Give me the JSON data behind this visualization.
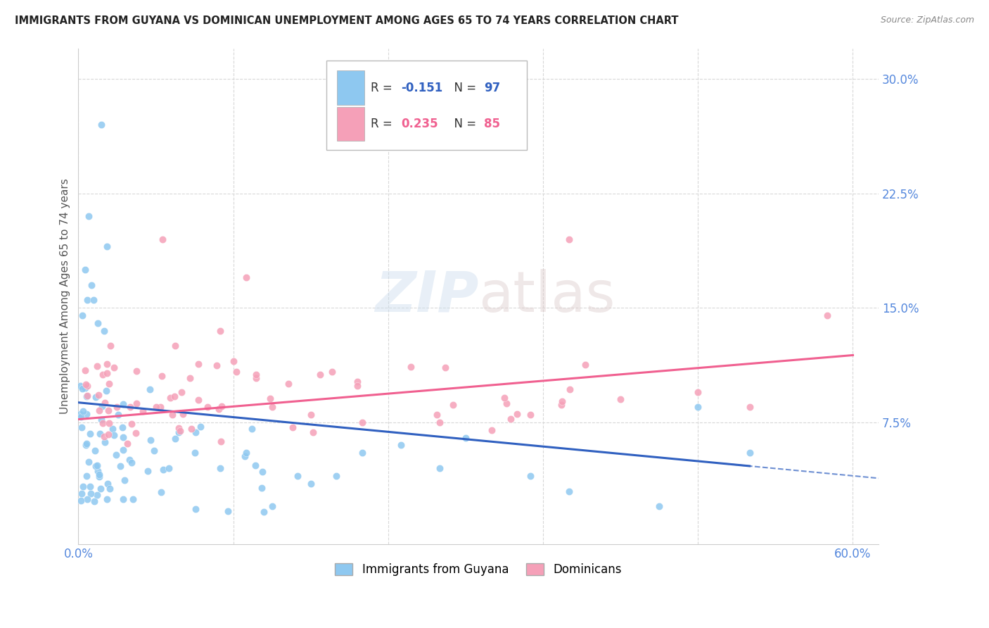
{
  "title": "IMMIGRANTS FROM GUYANA VS DOMINICAN UNEMPLOYMENT AMONG AGES 65 TO 74 YEARS CORRELATION CHART",
  "source": "Source: ZipAtlas.com",
  "ylabel": "Unemployment Among Ages 65 to 74 years",
  "xlim": [
    0.0,
    0.62
  ],
  "ylim": [
    -0.005,
    0.32
  ],
  "xtick_positions": [
    0.0,
    0.12,
    0.24,
    0.36,
    0.48,
    0.6
  ],
  "xticklabels": [
    "0.0%",
    "",
    "",
    "",
    "",
    "60.0%"
  ],
  "yticks_right": [
    0.075,
    0.15,
    0.225,
    0.3
  ],
  "yticklabels_right": [
    "7.5%",
    "15.0%",
    "22.5%",
    "30.0%"
  ],
  "guyana_color": "#8EC8F0",
  "dominican_color": "#F5A0B8",
  "guyana_line_color": "#3060C0",
  "dominican_line_color": "#F06090",
  "watermark_zip": "ZIP",
  "watermark_atlas": "atlas",
  "background_color": "#ffffff",
  "grid_color": "#d8d8d8",
  "tick_color": "#5588DD",
  "title_color": "#222222",
  "source_color": "#888888",
  "ylabel_color": "#555555",
  "legend_R_guyana": "-0.151",
  "legend_N_guyana": "97",
  "legend_R_dominican": "0.235",
  "legend_N_dominican": "85"
}
